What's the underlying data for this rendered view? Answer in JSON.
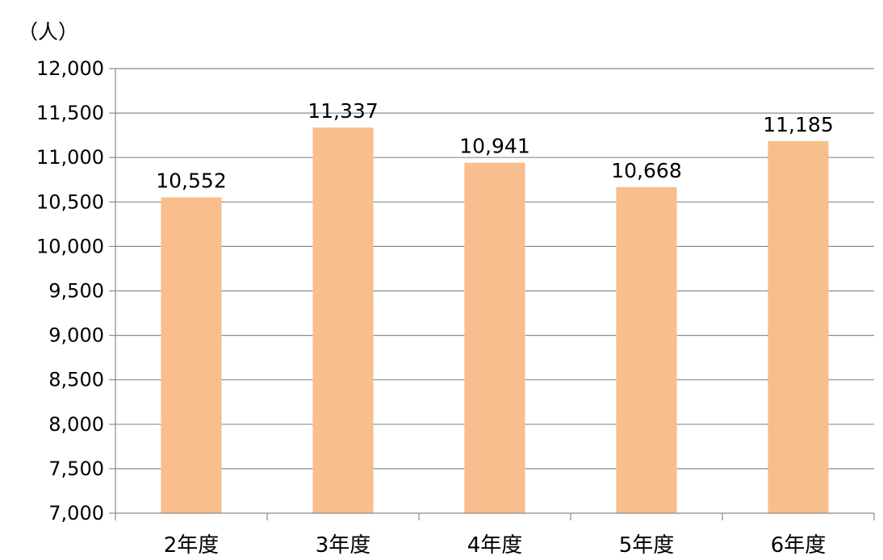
{
  "unit_label": "（人）",
  "chart_data": {
    "type": "bar",
    "categories": [
      "2年度",
      "3年度",
      "4年度",
      "5年度",
      "6年度"
    ],
    "values": [
      10552,
      11337,
      10941,
      10668,
      11185
    ],
    "data_labels": [
      "10,552",
      "11,337",
      "10,941",
      "10,668",
      "11,185"
    ],
    "ylabel": "（人）",
    "ylim": [
      7000,
      12000
    ],
    "yticks": [
      7000,
      7500,
      8000,
      8500,
      9000,
      9500,
      10000,
      10500,
      11000,
      11500,
      12000
    ],
    "ytick_labels": [
      "7,000",
      "7,500",
      "8,000",
      "8,500",
      "9,000",
      "9,500",
      "10,000",
      "10,500",
      "11,000",
      "11,500",
      "12,000"
    ],
    "bar_color": "#f9be8e",
    "grid": true,
    "legend": "none"
  }
}
